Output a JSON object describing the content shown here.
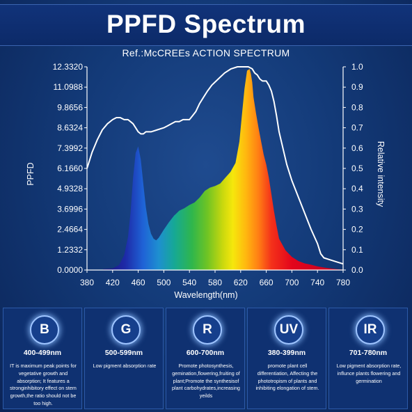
{
  "header": {
    "title": "PPFD Spectrum",
    "subtitle": "Ref.:McCREEs ACTION SPECTRUM"
  },
  "chart_data": {
    "type": "area",
    "xlabel": "Wavelength(nm)",
    "ylabel": "PPFD",
    "y2label": "Relative intensity",
    "xlim": [
      380,
      780
    ],
    "ylim": [
      0,
      12.332
    ],
    "y2lim": [
      0,
      1
    ],
    "x_ticks": [
      "380",
      "420",
      "460",
      "500",
      "540",
      "580",
      "620",
      "660",
      "700",
      "740",
      "780"
    ],
    "y_ticks": [
      "0.0000",
      "1.2332",
      "2.4664",
      "3.6996",
      "4.9328",
      "6.1660",
      "7.3992",
      "8.6324",
      "9.8656",
      "11.0988",
      "12.3320"
    ],
    "y2_ticks": [
      "0.0",
      "0.1",
      "0.2",
      "0.3",
      "0.4",
      "0.5",
      "0.6",
      "0.7",
      "0.8",
      "0.9",
      "1.0"
    ],
    "grid": false,
    "series": [
      {
        "name": "PPFD",
        "axis": "left",
        "fill": "spectrum",
        "x": [
          405,
          420,
          430,
          438,
          444,
          448,
          452,
          456,
          460,
          464,
          468,
          472,
          476,
          480,
          484,
          488,
          492,
          496,
          500,
          508,
          516,
          524,
          532,
          540,
          548,
          556,
          564,
          572,
          580,
          588,
          596,
          604,
          612,
          618,
          622,
          626,
          630,
          634,
          636,
          638,
          640,
          644,
          648,
          652,
          656,
          660,
          664,
          668,
          672,
          676,
          680,
          690,
          700,
          710,
          720,
          730,
          740,
          750,
          760,
          770,
          780
        ],
        "y": [
          0.05,
          0.1,
          0.3,
          0.9,
          2.0,
          3.5,
          5.6,
          7.1,
          7.5,
          6.7,
          5.2,
          3.8,
          2.8,
          2.2,
          1.9,
          1.8,
          1.95,
          2.2,
          2.45,
          2.9,
          3.3,
          3.6,
          3.75,
          3.95,
          4.1,
          4.4,
          4.8,
          5.0,
          5.1,
          5.25,
          5.6,
          5.95,
          6.5,
          7.8,
          9.4,
          11.0,
          12.1,
          12.2,
          11.9,
          11.4,
          10.5,
          9.5,
          8.6,
          7.8,
          7.0,
          6.4,
          5.6,
          4.6,
          3.6,
          2.7,
          1.9,
          1.2,
          0.8,
          0.55,
          0.4,
          0.32,
          0.22,
          0.15,
          0.1,
          0.05,
          0.02
        ]
      },
      {
        "name": "Relative intensity",
        "axis": "right",
        "x": [
          380,
          388,
          396,
          404,
          412,
          420,
          426,
          432,
          438,
          444,
          448,
          452,
          456,
          460,
          464,
          468,
          472,
          476,
          480,
          490,
          500,
          506,
          512,
          518,
          524,
          530,
          540,
          545,
          550,
          556,
          562,
          568,
          575,
          585,
          595,
          605,
          615,
          625,
          632,
          638,
          642,
          646,
          650,
          654,
          660,
          664,
          668,
          672,
          676,
          680,
          686,
          692,
          700,
          710,
          720,
          730,
          740,
          745,
          750,
          760,
          770,
          780
        ],
        "y": [
          0.5,
          0.58,
          0.64,
          0.69,
          0.72,
          0.74,
          0.75,
          0.75,
          0.74,
          0.74,
          0.73,
          0.72,
          0.7,
          0.68,
          0.67,
          0.67,
          0.68,
          0.68,
          0.68,
          0.69,
          0.7,
          0.71,
          0.72,
          0.73,
          0.73,
          0.74,
          0.74,
          0.76,
          0.78,
          0.82,
          0.85,
          0.88,
          0.91,
          0.94,
          0.97,
          0.99,
          1.0,
          1.0,
          1.0,
          0.99,
          0.97,
          0.96,
          0.94,
          0.93,
          0.93,
          0.91,
          0.88,
          0.83,
          0.76,
          0.68,
          0.6,
          0.52,
          0.44,
          0.36,
          0.28,
          0.2,
          0.13,
          0.08,
          0.06,
          0.05,
          0.04,
          0.03
        ]
      }
    ]
  },
  "cards": [
    {
      "badge": "B",
      "range": "400-499nm",
      "desc": "IT is maximum peak points for vegetative growth and absorption; It features a stronginhibitory effect on stem growth,the ratio should not be too high."
    },
    {
      "badge": "G",
      "range": "500-599nm",
      "desc": "Low pigment absorption rate"
    },
    {
      "badge": "R",
      "range": "600-700nm",
      "desc": "Promote photosynthesis, gemination,flowering,fruiting of plant;Promote the synthesisof plant carbohydrates,increasing yeilds"
    },
    {
      "badge": "UV",
      "range": "380-399nm",
      "desc": "promote plant cell differentiation, Affecting the phototropism of plants and inhibiting elongation of stem."
    },
    {
      "badge": "IR",
      "range": "701-780nm",
      "desc": "Low pigment absorption rate, influnce plants flowering and germination"
    }
  ],
  "colors": {
    "background": "#133a78",
    "title_bar": "#0e2e6f",
    "card": "#0f3171",
    "curve": "#ffffff"
  }
}
